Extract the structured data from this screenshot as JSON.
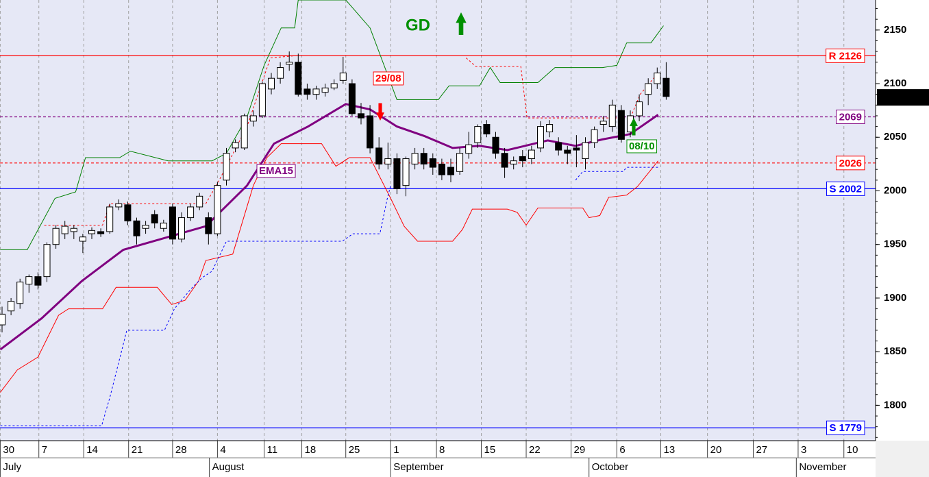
{
  "chart_data": {
    "type": "candlestick",
    "open": [
      1875,
      1888,
      1895,
      1913,
      1920,
      1920,
      1950,
      1960,
      1962,
      1953,
      1960,
      1962,
      1962,
      1985,
      1987,
      1972,
      1965,
      1978,
      1965,
      1985,
      1955,
      1975,
      1985,
      1975,
      1960,
      2010,
      2040,
      2040,
      2065,
      2070,
      2095,
      2105,
      2118,
      2120,
      2095,
      2090,
      2092,
      2096,
      2103,
      2100,
      2072,
      2070,
      2040,
      2025,
      2030,
      2005,
      2025,
      2035,
      2030,
      2025,
      2022,
      2018,
      2035,
      2045,
      2062,
      2050,
      2035,
      2025,
      2032,
      2030,
      2040,
      2055,
      2045,
      2038,
      2040,
      2030,
      2045,
      2062,
      2060,
      2075,
      2055,
      2070,
      2090,
      2100,
      2105
    ],
    "high": [
      1892,
      1900,
      1918,
      1922,
      1924,
      1952,
      1968,
      1972,
      1968,
      1960,
      1966,
      1965,
      1988,
      1992,
      1990,
      1975,
      1972,
      1982,
      1973,
      1988,
      1980,
      1988,
      1998,
      1980,
      2008,
      2040,
      2048,
      2072,
      2075,
      2102,
      2110,
      2120,
      2130,
      2128,
      2100,
      2098,
      2100,
      2104,
      2125,
      2104,
      2082,
      2080,
      2050,
      2045,
      2035,
      2032,
      2040,
      2040,
      2035,
      2030,
      2030,
      2040,
      2055,
      2062,
      2066,
      2055,
      2040,
      2032,
      2038,
      2042,
      2065,
      2066,
      2050,
      2042,
      2052,
      2050,
      2060,
      2070,
      2085,
      2080,
      2075,
      2090,
      2105,
      2115,
      2120
    ],
    "low": [
      1868,
      1884,
      1890,
      1905,
      1908,
      1915,
      1946,
      1955,
      1955,
      1942,
      1955,
      1957,
      1960,
      1982,
      1968,
      1950,
      1960,
      1965,
      1962,
      1950,
      1952,
      1972,
      1982,
      1950,
      1958,
      2005,
      2036,
      2038,
      2060,
      2068,
      2090,
      2100,
      2112,
      2088,
      2085,
      2085,
      2088,
      2094,
      2100,
      2070,
      2062,
      2035,
      2020,
      2020,
      1997,
      1995,
      2020,
      2020,
      2015,
      2010,
      2008,
      2015,
      2030,
      2040,
      2050,
      2030,
      2012,
      2020,
      2022,
      2025,
      2036,
      2050,
      2033,
      2025,
      2022,
      2020,
      2040,
      2055,
      2055,
      2045,
      2050,
      2065,
      2080,
      2095,
      2085
    ],
    "close": [
      1885,
      1897,
      1915,
      1920,
      1912,
      1950,
      1965,
      1967,
      1965,
      1957,
      1963,
      1960,
      1985,
      1988,
      1972,
      1958,
      1968,
      1970,
      1970,
      1955,
      1975,
      1985,
      1995,
      1960,
      2005,
      2035,
      2045,
      2070,
      2070,
      2100,
      2105,
      2115,
      2120,
      2090,
      2090,
      2095,
      2096,
      2100,
      2110,
      2072,
      2068,
      2040,
      2025,
      2030,
      2002,
      2030,
      2035,
      2025,
      2022,
      2015,
      2015,
      2035,
      2043,
      2060,
      2053,
      2035,
      2022,
      2028,
      2028,
      2038,
      2060,
      2062,
      2038,
      2035,
      2038,
      2045,
      2057,
      2065,
      2080,
      2048,
      2070,
      2083,
      2100,
      2110,
      2088
    ],
    "xlim": [
      -0.23,
      97.33
    ],
    "ylim": [
      1767,
      2178
    ],
    "yticks": [
      1800,
      1850,
      1900,
      1950,
      2000,
      2050,
      2100,
      2150
    ],
    "xticks": [
      {
        "value": -0.2,
        "label": "30"
      },
      {
        "value": 4.1,
        "label": "7"
      },
      {
        "value": 9.1,
        "label": "14"
      },
      {
        "value": 14.1,
        "label": "21"
      },
      {
        "value": 19,
        "label": "28"
      },
      {
        "value": 24,
        "label": "4"
      },
      {
        "value": 29.2,
        "label": "11"
      },
      {
        "value": 33.4,
        "label": "18"
      },
      {
        "value": 38.3,
        "label": "25"
      },
      {
        "value": 43.3,
        "label": "1"
      },
      {
        "value": 48.4,
        "label": "8"
      },
      {
        "value": 53.4,
        "label": "15"
      },
      {
        "value": 58.4,
        "label": "22"
      },
      {
        "value": 63.4,
        "label": "29"
      },
      {
        "value": 68.5,
        "label": "6"
      },
      {
        "value": 73.4,
        "label": "13"
      },
      {
        "value": 78.6,
        "label": "20"
      },
      {
        "value": 83.7,
        "label": "27"
      },
      {
        "value": 88.7,
        "label": "3"
      },
      {
        "value": 93.8,
        "label": "10"
      }
    ],
    "months": [
      {
        "value": -0.2,
        "label": "July"
      },
      {
        "value": 23.1,
        "label": "August"
      },
      {
        "value": 43.3,
        "label": "September"
      },
      {
        "value": 65.4,
        "label": "October"
      },
      {
        "value": 88.5,
        "label": "November"
      }
    ],
    "grid": true,
    "up_color": "#ffffff",
    "down_color": "#000000",
    "background": "#e6e8f6",
    "lines": [
      {
        "color": "#800080",
        "dash": "none",
        "width": 3,
        "x": [
          -0.2,
          4.4,
          8.9,
          13.5,
          18.1,
          22.7,
          27.3,
          30.3,
          34.1,
          38.3,
          41,
          44,
          47.1,
          50.2,
          53.2,
          56.3,
          59.3,
          60.8,
          63.9,
          66.9,
          70,
          73.1
        ],
        "values": [
          1852,
          1881,
          1916,
          1945,
          1956,
          1967,
          2005,
          2044,
          2060,
          2081,
          2076,
          2060,
          2051,
          2040,
          2042,
          2038,
          2044,
          2047,
          2042,
          2048,
          2053,
          2071
        ]
      },
      {
        "color": "#008000",
        "dash": "none",
        "width": 1,
        "x": [
          -0.2,
          2.8,
          5.9,
          8.2,
          9.3,
          13.1,
          14.3,
          18.5,
          23.4,
          25,
          27.3,
          29.2,
          31.1,
          32.6,
          33,
          38.3,
          41,
          44,
          48.6,
          49.8,
          53.2,
          54.4,
          55.5,
          59.7,
          61.6,
          66.9,
          68.5,
          69.6,
          72.3,
          73.7
        ],
        "values": [
          1945,
          1945,
          1993,
          1999,
          2031,
          2031,
          2037,
          2028,
          2028,
          2035,
          2069,
          2117,
          2152,
          2152,
          2178,
          2178,
          2152,
          2085,
          2085,
          2098,
          2098,
          2115,
          2101,
          2101,
          2115,
          2115,
          2117,
          2138,
          2138,
          2154
        ]
      },
      {
        "color": "#ff0000",
        "dash": "none",
        "width": 1,
        "x": [
          -0.2,
          1.7,
          4,
          6.3,
          7.4,
          11.2,
          12.7,
          17.3,
          18.9,
          20.4,
          21.9,
          22.7,
          25.7,
          28,
          29.5,
          31.1,
          35.6,
          37.2,
          38.7,
          41,
          43.3,
          44.8,
          46.3,
          50.2,
          51.3,
          52.4,
          56.3,
          57.4,
          58.4,
          59.7,
          64.7,
          65.4,
          66.6,
          67.6,
          69.6,
          70.8,
          73.1
        ],
        "values": [
          1812,
          1833,
          1845,
          1884,
          1890,
          1890,
          1910,
          1910,
          1894,
          1898,
          1916,
          1935,
          1941,
          2005,
          2031,
          2044,
          2044,
          2023,
          2031,
          2031,
          1993,
          1967,
          1953,
          1953,
          1964,
          1983,
          1983,
          1980,
          1968,
          1984,
          1984,
          1975,
          1977,
          1994,
          1996,
          2004,
          2028
        ]
      },
      {
        "color": "#ff0000",
        "dash": "3,3",
        "width": 1,
        "x": [
          4.7,
          11.2,
          12,
          22.7,
          24.2,
          27.3,
          29.9,
          32.6,
          null,
          51.7,
          52.8,
          57.8,
          58.5,
          60.1,
          70,
          71.1,
          73.1
        ],
        "values": [
          1968,
          1968,
          1988,
          1988,
          2010,
          2060,
          2124,
          2126,
          null,
          2124,
          2116,
          2116,
          2068,
          2068,
          2068,
          2090,
          2110
        ]
      },
      {
        "color": "#0000ff",
        "dash": "3,3",
        "width": 1,
        "x": [
          -0.2,
          11.1,
          12,
          13.9,
          18.1,
          19.2,
          21.1,
          22.3,
          23.4,
          25,
          37.9,
          39.1,
          42.1,
          42.9,
          43.3,
          null,
          63.9,
          64.7,
          69.2,
          69.6,
          73.1
        ],
        "values": [
          1781,
          1781,
          1807,
          1870,
          1870,
          1890,
          1909,
          1919,
          1925,
          1953,
          1953,
          1960,
          1960,
          1992,
          2005,
          null,
          2010,
          2018,
          2018,
          2022,
          2022
        ]
      }
    ],
    "levels": [
      {
        "value": 2126,
        "label": "R 2126",
        "color": "#ff0000",
        "dash": "none"
      },
      {
        "value": 2069,
        "label": "2069",
        "color": "#800080",
        "dash": "4,3"
      },
      {
        "value": 2026,
        "label": "2026",
        "color": "#ff0000",
        "dash": "4,3"
      },
      {
        "value": 2002,
        "label": "S 2002",
        "color": "#0000ff",
        "dash": "none"
      },
      {
        "value": 1779,
        "label": "S 1779",
        "color": "#0000ff",
        "dash": "none"
      }
    ],
    "last_price": 2087.17,
    "annotations": [
      {
        "text": "GD",
        "color": "#009000"
      },
      {
        "text": "29/08",
        "color": "#ff0000"
      },
      {
        "text": "08/10",
        "color": "#009000"
      },
      {
        "text": "EMA15",
        "color": "#800080"
      }
    ]
  }
}
